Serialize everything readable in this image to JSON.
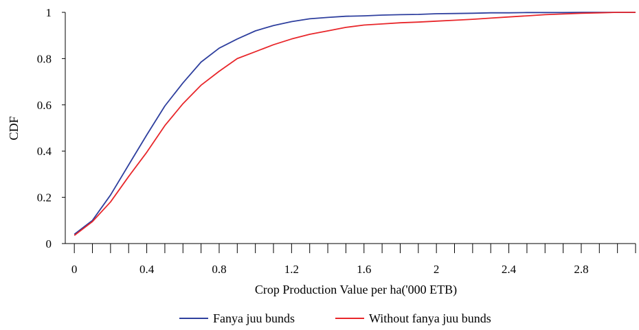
{
  "chart_data": {
    "type": "line",
    "title": "",
    "xlabel": "Crop Production Value per ha('000 ETB)",
    "ylabel": "CDF",
    "xlim": [
      -0.05,
      3.1
    ],
    "ylim": [
      0,
      1
    ],
    "x_tick_labels": [
      "0",
      "0.4",
      "0.8",
      "1.2",
      "1.6",
      "2",
      "2.4",
      "2.8"
    ],
    "y_tick_labels": [
      "0",
      "0.2",
      "0.4",
      "0.6",
      "0.8",
      "1"
    ],
    "grid": false,
    "legend_position": "bottom",
    "series": [
      {
        "name": "Fanya juu bunds",
        "color": "#2e3f9e",
        "x": [
          0,
          0.1,
          0.2,
          0.3,
          0.4,
          0.5,
          0.6,
          0.7,
          0.8,
          0.9,
          1.0,
          1.1,
          1.2,
          1.3,
          1.4,
          1.5,
          1.6,
          1.7,
          1.8,
          1.9,
          2.0,
          2.1,
          2.2,
          2.3,
          2.4,
          2.5,
          2.6,
          2.7,
          2.8,
          2.9,
          3.0,
          3.1
        ],
        "y": [
          0.04,
          0.1,
          0.21,
          0.34,
          0.47,
          0.595,
          0.695,
          0.785,
          0.845,
          0.885,
          0.92,
          0.943,
          0.96,
          0.972,
          0.978,
          0.983,
          0.985,
          0.988,
          0.99,
          0.991,
          0.994,
          0.995,
          0.996,
          0.998,
          0.998,
          0.999,
          0.999,
          0.999,
          1.0,
          1.0,
          1.0,
          1.0
        ]
      },
      {
        "name": "Without fanya juu bunds",
        "color": "#e8262a",
        "x": [
          0,
          0.1,
          0.2,
          0.3,
          0.4,
          0.5,
          0.6,
          0.7,
          0.8,
          0.9,
          1.0,
          1.1,
          1.2,
          1.3,
          1.4,
          1.5,
          1.6,
          1.7,
          1.8,
          1.9,
          2.0,
          2.1,
          2.2,
          2.3,
          2.4,
          2.5,
          2.6,
          2.7,
          2.8,
          2.9,
          3.0,
          3.1
        ],
        "y": [
          0.035,
          0.095,
          0.18,
          0.29,
          0.395,
          0.51,
          0.605,
          0.685,
          0.745,
          0.8,
          0.83,
          0.86,
          0.885,
          0.905,
          0.92,
          0.935,
          0.945,
          0.95,
          0.955,
          0.958,
          0.962,
          0.966,
          0.97,
          0.975,
          0.98,
          0.985,
          0.99,
          0.993,
          0.996,
          0.998,
          1.0,
          1.0
        ]
      }
    ]
  }
}
